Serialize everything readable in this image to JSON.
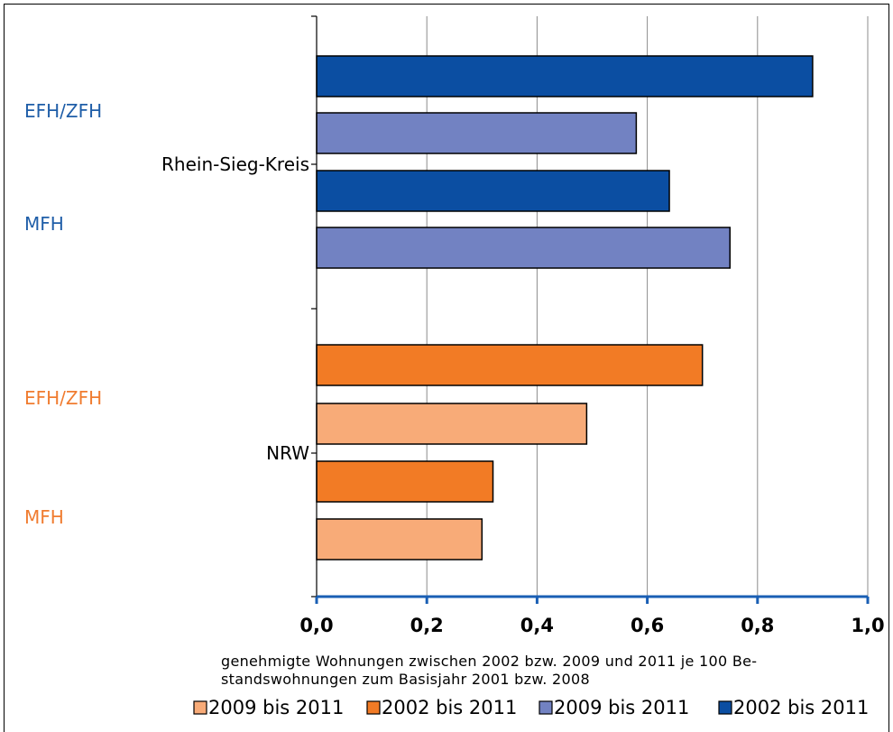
{
  "chart_data": {
    "type": "bar",
    "orientation": "horizontal",
    "x_ticks": [
      "0,0",
      "0,2",
      "0,4",
      "0,6",
      "0,8",
      "1,0"
    ],
    "xlim": [
      0,
      1.0
    ],
    "xlabel": "genehmigte Wohnungen zwischen 2002 bzw. 2009 und 2011 je 100 Be-\nstandswohnungen zum Basisjahr 2001 bzw. 2008",
    "grid": "vertical",
    "groups": [
      {
        "name": "Rhein-Sieg-Kreis",
        "subgroups": [
          {
            "label": "EFH/ZFH",
            "label_color": "#1f5ea8",
            "bars": [
              {
                "period": "2002 bis 2011",
                "value": 0.9,
                "color": "#0b4ea2"
              },
              {
                "period": "2009 bis 2011",
                "value": 0.58,
                "color": "#7282c2"
              }
            ]
          },
          {
            "label": "MFH",
            "label_color": "#1f5ea8",
            "bars": [
              {
                "period": "2002 bis 2011",
                "value": 0.64,
                "color": "#0b4ea2"
              },
              {
                "period": "2009 bis 2011",
                "value": 0.75,
                "color": "#7282c2"
              }
            ]
          }
        ]
      },
      {
        "name": "NRW",
        "subgroups": [
          {
            "label": "EFH/ZFH",
            "label_color": "#f07c30",
            "bars": [
              {
                "period": "2002 bis 2011",
                "value": 0.7,
                "color": "#f27b25"
              },
              {
                "period": "2009 bis 2011",
                "value": 0.49,
                "color": "#f8ab78"
              }
            ]
          },
          {
            "label": "MFH",
            "label_color": "#f07c30",
            "bars": [
              {
                "period": "2002 bis 2011",
                "value": 0.32,
                "color": "#f27b25"
              },
              {
                "period": "2009 bis 2011",
                "value": 0.3,
                "color": "#f8ab78"
              }
            ]
          }
        ]
      }
    ],
    "legend": {
      "placement": "bottom",
      "entries": [
        {
          "label": "2009 bis 2011",
          "color": "#f8ab78"
        },
        {
          "label": "2002 bis 2011",
          "color": "#f27b25"
        },
        {
          "label": "2009 bis 2011",
          "color": "#7282c2"
        },
        {
          "label": "2002 bis 2011",
          "color": "#0b4ea2"
        }
      ]
    }
  }
}
